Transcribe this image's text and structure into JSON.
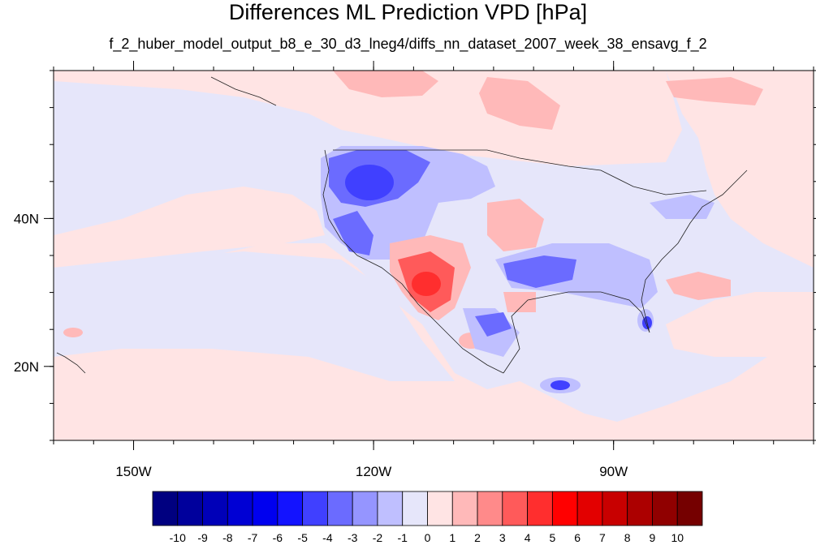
{
  "title": "Differences ML Prediction VPD [hPa]",
  "subtitle": "f_2_huber_model_output_b8_e_30_d3_lneg4/diffs_nn_dataset_2007_week_38_ensavg_f_2",
  "map": {
    "lon_range": [
      -160,
      -65
    ],
    "lat_range": [
      10,
      60
    ],
    "lon_ticks": [
      {
        "lon": -150,
        "label": "150W"
      },
      {
        "lon": -120,
        "label": "120W"
      },
      {
        "lon": -90,
        "label": "90W"
      }
    ],
    "lat_ticks": [
      {
        "lat": 40,
        "label": "40N"
      },
      {
        "lat": 20,
        "label": "20N"
      }
    ],
    "background_color": "#e6e6fa"
  },
  "colorbar": {
    "labels": [
      "-10",
      "-9",
      "-8",
      "-7",
      "-6",
      "-5",
      "-4",
      "-3",
      "-2",
      "-1",
      "0",
      "1",
      "2",
      "3",
      "4",
      "5",
      "6",
      "7",
      "8",
      "9",
      "10"
    ],
    "colors": [
      "#000080",
      "#00009c",
      "#0000b8",
      "#0000d4",
      "#0000ef",
      "#1313ff",
      "#4040ff",
      "#6b6bff",
      "#9595ff",
      "#bfbfff",
      "#e6e6fa",
      "#ffe4e4",
      "#ffb9b9",
      "#ff8a8a",
      "#ff5a5a",
      "#ff2e2e",
      "#ff0000",
      "#e30000",
      "#c80000",
      "#ac0000",
      "#900000",
      "#750000"
    ]
  }
}
